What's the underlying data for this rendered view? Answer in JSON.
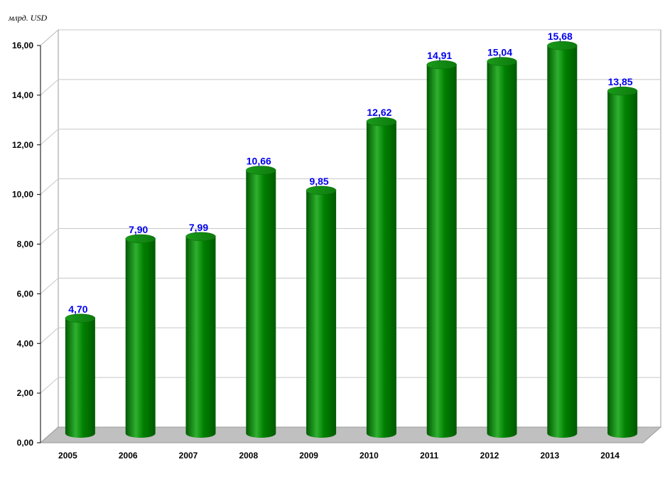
{
  "chart_data": {
    "type": "bar",
    "unit_label": "млрд. USD",
    "categories": [
      "2005",
      "2006",
      "2007",
      "2008",
      "2009",
      "2010",
      "2011",
      "2012",
      "2013",
      "2014"
    ],
    "values": [
      4.7,
      7.9,
      7.99,
      10.66,
      9.85,
      12.62,
      14.91,
      15.04,
      15.68,
      13.85
    ],
    "value_labels": [
      "4,70",
      "7,90",
      "7,99",
      "10,66",
      "9,85",
      "12,62",
      "14,91",
      "15,04",
      "15,68",
      "13,85"
    ],
    "y_ticks": [
      "0,00",
      "2,00",
      "4,00",
      "6,00",
      "8,00",
      "10,00",
      "12,00",
      "14,00",
      "16,00"
    ],
    "ylim": [
      0,
      16
    ],
    "grid": true,
    "legend": "none",
    "colors": {
      "bar": "#008000",
      "bar_dark": "#005a00",
      "bar_light": "#2fb02f",
      "value_label": "#0000ee",
      "floor": "#c0c0c0",
      "grid": "#c8c8c8"
    }
  }
}
